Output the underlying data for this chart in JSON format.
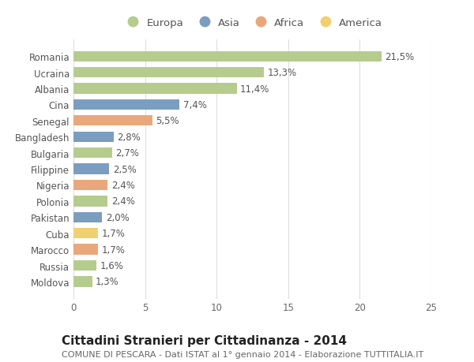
{
  "countries": [
    "Romania",
    "Ucraina",
    "Albania",
    "Cina",
    "Senegal",
    "Bangladesh",
    "Bulgaria",
    "Filippine",
    "Nigeria",
    "Polonia",
    "Pakistan",
    "Cuba",
    "Marocco",
    "Russia",
    "Moldova"
  ],
  "values": [
    21.5,
    13.3,
    11.4,
    7.4,
    5.5,
    2.8,
    2.7,
    2.5,
    2.4,
    2.4,
    2.0,
    1.7,
    1.7,
    1.6,
    1.3
  ],
  "labels": [
    "21,5%",
    "13,3%",
    "11,4%",
    "7,4%",
    "5,5%",
    "2,8%",
    "2,7%",
    "2,5%",
    "2,4%",
    "2,4%",
    "2,0%",
    "1,7%",
    "1,7%",
    "1,6%",
    "1,3%"
  ],
  "continents": [
    "Europa",
    "Europa",
    "Europa",
    "Asia",
    "Africa",
    "Asia",
    "Europa",
    "Asia",
    "Africa",
    "Europa",
    "Asia",
    "America",
    "Africa",
    "Europa",
    "Europa"
  ],
  "colors": {
    "Europa": "#b5cc8e",
    "Asia": "#7b9dc0",
    "Africa": "#e8a87c",
    "America": "#f0d070"
  },
  "legend_order": [
    "Europa",
    "Asia",
    "Africa",
    "America"
  ],
  "title": "Cittadini Stranieri per Cittadinanza - 2014",
  "subtitle": "COMUNE DI PESCARA - Dati ISTAT al 1° gennaio 2014 - Elaborazione TUTTITALIA.IT",
  "xlim": [
    0,
    25
  ],
  "xticks": [
    0,
    5,
    10,
    15,
    20,
    25
  ],
  "bg_color": "#ffffff",
  "grid_color": "#dddddd",
  "title_fontsize": 11,
  "subtitle_fontsize": 8,
  "bar_height": 0.65,
  "label_fontsize": 8.5,
  "tick_fontsize": 8.5,
  "legend_fontsize": 9.5
}
